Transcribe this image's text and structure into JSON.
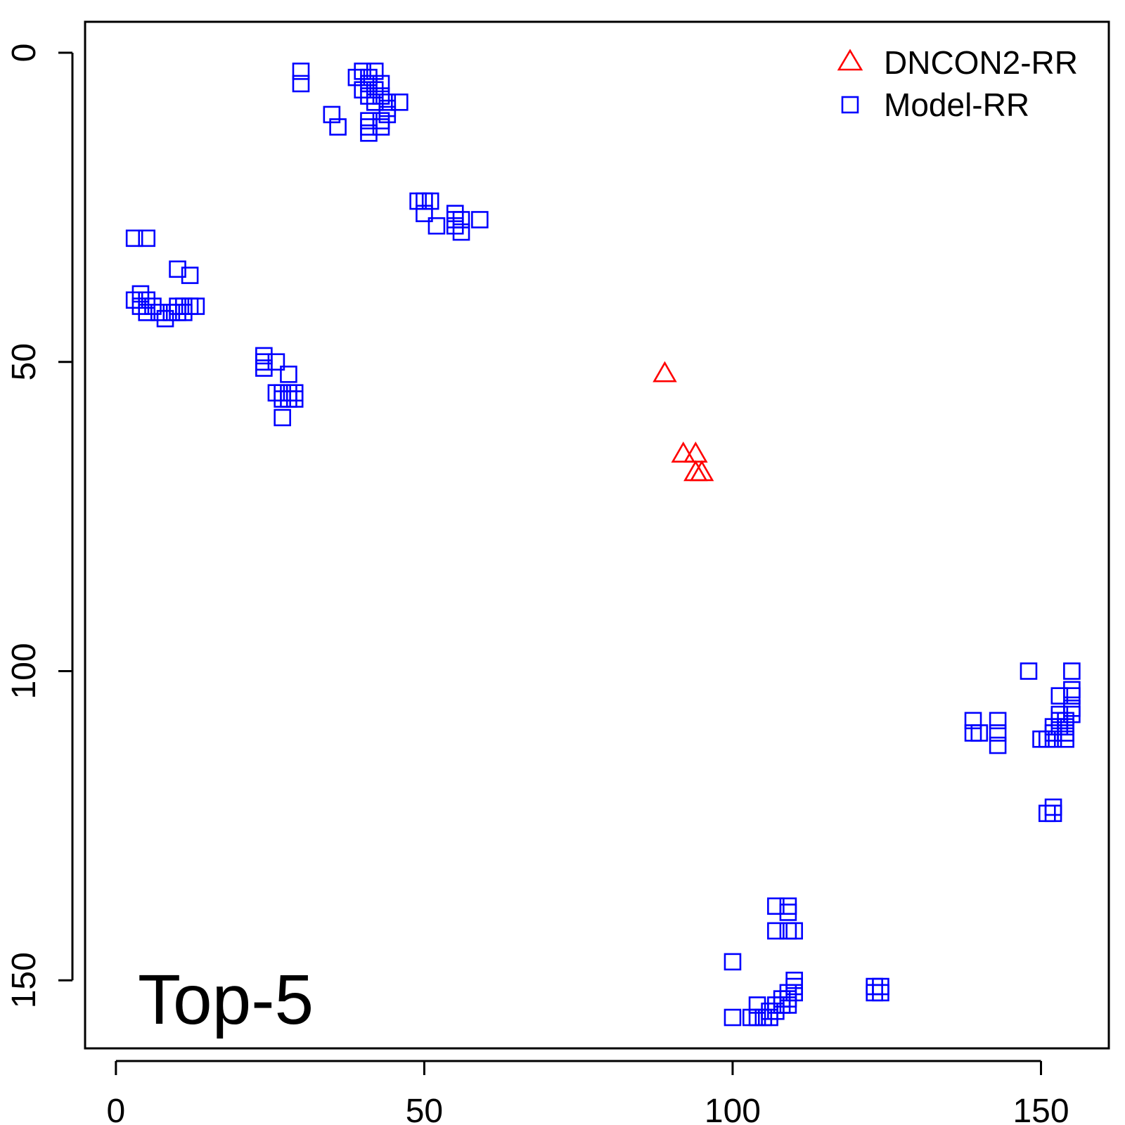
{
  "chart_data": {
    "type": "scatter",
    "title": "",
    "xlabel": "",
    "ylabel": "",
    "xlim": [
      -5,
      161
    ],
    "ylim": [
      161,
      -5
    ],
    "x_ticks": [
      0,
      50,
      100,
      150
    ],
    "y_ticks": [
      0,
      50,
      100,
      150
    ],
    "grid": false,
    "legend_position": "top-right",
    "annotation": "Top-5",
    "series": [
      {
        "name": "DNCON2-RR",
        "marker": "triangle",
        "color": "#ff0000",
        "points": [
          [
            89,
            52
          ],
          [
            92,
            65
          ],
          [
            94,
            65
          ],
          [
            94,
            68
          ],
          [
            95,
            68
          ]
        ]
      },
      {
        "name": "Model-RR",
        "marker": "square",
        "color": "#0000ff",
        "points": [
          [
            30,
            3
          ],
          [
            30,
            5
          ],
          [
            40,
            3
          ],
          [
            41,
            4
          ],
          [
            42,
            3
          ],
          [
            39,
            4
          ],
          [
            41,
            5
          ],
          [
            42,
            6
          ],
          [
            43,
            5
          ],
          [
            40,
            6
          ],
          [
            41,
            7
          ],
          [
            43,
            7
          ],
          [
            44,
            8
          ],
          [
            42,
            8
          ],
          [
            44,
            9
          ],
          [
            46,
            8
          ],
          [
            44,
            10
          ],
          [
            43,
            11
          ],
          [
            43,
            12
          ],
          [
            41,
            11
          ],
          [
            41,
            12
          ],
          [
            41,
            13
          ],
          [
            35,
            10
          ],
          [
            36,
            12
          ],
          [
            49,
            24
          ],
          [
            50,
            24
          ],
          [
            51,
            24
          ],
          [
            50,
            26
          ],
          [
            52,
            28
          ],
          [
            55,
            26
          ],
          [
            55,
            27
          ],
          [
            55,
            28
          ],
          [
            56,
            27
          ],
          [
            56,
            29
          ],
          [
            59,
            27
          ],
          [
            3,
            30
          ],
          [
            5,
            30
          ],
          [
            10,
            35
          ],
          [
            12,
            36
          ],
          [
            3,
            40
          ],
          [
            4,
            39
          ],
          [
            4,
            41
          ],
          [
            5,
            40
          ],
          [
            5,
            42
          ],
          [
            6,
            41
          ],
          [
            7,
            42
          ],
          [
            8,
            43
          ],
          [
            9,
            42
          ],
          [
            10,
            41
          ],
          [
            10,
            42
          ],
          [
            11,
            41
          ],
          [
            11,
            42
          ],
          [
            12,
            41
          ],
          [
            13,
            41
          ],
          [
            24,
            49
          ],
          [
            24,
            50
          ],
          [
            24,
            51
          ],
          [
            26,
            50
          ],
          [
            28,
            52
          ],
          [
            26,
            55
          ],
          [
            27,
            55
          ],
          [
            27,
            56
          ],
          [
            28,
            55
          ],
          [
            28,
            56
          ],
          [
            29,
            55
          ],
          [
            29,
            56
          ],
          [
            27,
            59
          ],
          [
            148,
            100
          ],
          [
            155,
            100
          ],
          [
            155,
            103
          ],
          [
            155,
            104
          ],
          [
            155,
            106
          ],
          [
            155,
            107
          ],
          [
            153,
            104
          ],
          [
            153,
            107
          ],
          [
            153,
            108
          ],
          [
            153,
            109
          ],
          [
            154,
            108
          ],
          [
            154,
            109
          ],
          [
            154,
            110
          ],
          [
            152,
            109
          ],
          [
            152,
            110
          ],
          [
            152,
            111
          ],
          [
            151,
            111
          ],
          [
            150,
            111
          ],
          [
            154,
            111
          ],
          [
            139,
            108
          ],
          [
            139,
            110
          ],
          [
            140,
            110
          ],
          [
            143,
            108
          ],
          [
            143,
            110
          ],
          [
            143,
            112
          ],
          [
            151,
            123
          ],
          [
            152,
            123
          ],
          [
            152,
            122
          ],
          [
            107,
            138
          ],
          [
            109,
            138
          ],
          [
            109,
            139
          ],
          [
            107,
            142
          ],
          [
            109,
            142
          ],
          [
            110,
            142
          ],
          [
            100,
            147
          ],
          [
            110,
            150
          ],
          [
            110,
            151
          ],
          [
            110,
            152
          ],
          [
            109,
            152
          ],
          [
            109,
            153
          ],
          [
            108,
            153
          ],
          [
            108,
            154
          ],
          [
            107,
            154
          ],
          [
            107,
            155
          ],
          [
            106,
            155
          ],
          [
            109,
            154
          ],
          [
            104,
            154
          ],
          [
            103,
            156
          ],
          [
            104,
            156
          ],
          [
            105,
            156
          ],
          [
            106,
            156
          ],
          [
            100,
            156
          ],
          [
            123,
            151
          ],
          [
            124,
            151
          ],
          [
            123,
            152
          ],
          [
            124,
            152
          ]
        ]
      }
    ]
  }
}
